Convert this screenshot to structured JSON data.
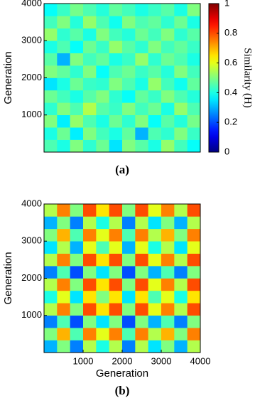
{
  "chart_data": [
    {
      "type": "heatmap",
      "title": "(a)",
      "y_label": "Generation",
      "colormap": "jet",
      "xlim": [
        0,
        4000
      ],
      "ylim": [
        0,
        4000
      ],
      "yticks": [
        1000,
        2000,
        3000,
        4000
      ],
      "clim": [
        0,
        1
      ],
      "colorbar_ticks": [
        0,
        0.2,
        0.4,
        0.6,
        0.8,
        1
      ],
      "colorbar_label": "Similarity (H)",
      "values": [
        [
          0.45,
          0.4,
          0.5,
          0.42,
          0.48,
          0.35,
          0.5,
          0.46,
          0.4,
          0.52,
          0.44,
          0.38
        ],
        [
          0.4,
          0.48,
          0.36,
          0.5,
          0.44,
          0.4,
          0.47,
          0.3,
          0.45,
          0.42,
          0.5,
          0.43
        ],
        [
          0.5,
          0.36,
          0.52,
          0.45,
          0.4,
          0.48,
          0.42,
          0.5,
          0.38,
          0.46,
          0.41,
          0.49
        ],
        [
          0.42,
          0.5,
          0.45,
          0.55,
          0.46,
          0.43,
          0.5,
          0.44,
          0.48,
          0.4,
          0.52,
          0.45
        ],
        [
          0.48,
          0.44,
          0.4,
          0.46,
          0.5,
          0.42,
          0.38,
          0.47,
          0.43,
          0.5,
          0.45,
          0.41
        ],
        [
          0.35,
          0.4,
          0.48,
          0.43,
          0.42,
          0.5,
          0.45,
          0.4,
          0.52,
          0.44,
          0.39,
          0.47
        ],
        [
          0.5,
          0.47,
          0.42,
          0.5,
          0.38,
          0.45,
          0.48,
          0.43,
          0.46,
          0.41,
          0.5,
          0.44
        ],
        [
          0.46,
          0.3,
          0.5,
          0.44,
          0.47,
          0.4,
          0.43,
          0.52,
          0.42,
          0.48,
          0.45,
          0.4
        ],
        [
          0.4,
          0.45,
          0.38,
          0.48,
          0.43,
          0.52,
          0.46,
          0.42,
          0.5,
          0.44,
          0.47,
          0.43
        ],
        [
          0.52,
          0.42,
          0.46,
          0.4,
          0.5,
          0.44,
          0.41,
          0.48,
          0.44,
          0.5,
          0.42,
          0.46
        ],
        [
          0.44,
          0.5,
          0.41,
          0.52,
          0.45,
          0.39,
          0.5,
          0.45,
          0.47,
          0.42,
          0.48,
          0.4
        ],
        [
          0.38,
          0.43,
          0.49,
          0.45,
          0.41,
          0.47,
          0.44,
          0.4,
          0.43,
          0.46,
          0.4,
          0.5
        ]
      ]
    },
    {
      "type": "heatmap",
      "title": "(b)",
      "y_label": "Generation",
      "x_label": "Generation",
      "colormap": "jet",
      "xlim": [
        0,
        4000
      ],
      "ylim": [
        0,
        4000
      ],
      "xticks": [
        1000,
        2000,
        3000,
        4000
      ],
      "yticks": [
        1000,
        2000,
        3000,
        4000
      ],
      "clim": [
        0,
        1
      ],
      "values": [
        [
          0.3,
          0.5,
          0.25,
          0.55,
          0.4,
          0.55,
          0.25,
          0.55,
          0.35,
          0.5,
          0.3,
          0.55
        ],
        [
          0.5,
          0.7,
          0.45,
          0.75,
          0.6,
          0.75,
          0.45,
          0.75,
          0.55,
          0.7,
          0.5,
          0.75
        ],
        [
          0.25,
          0.45,
          0.2,
          0.5,
          0.35,
          0.5,
          0.2,
          0.5,
          0.3,
          0.45,
          0.25,
          0.5
        ],
        [
          0.55,
          0.75,
          0.5,
          0.8,
          0.65,
          0.8,
          0.5,
          0.8,
          0.6,
          0.75,
          0.55,
          0.8
        ],
        [
          0.4,
          0.6,
          0.35,
          0.65,
          0.5,
          0.65,
          0.35,
          0.65,
          0.45,
          0.6,
          0.4,
          0.65
        ],
        [
          0.55,
          0.75,
          0.5,
          0.8,
          0.65,
          0.8,
          0.5,
          0.8,
          0.6,
          0.75,
          0.55,
          0.8
        ],
        [
          0.25,
          0.45,
          0.2,
          0.5,
          0.35,
          0.5,
          0.2,
          0.5,
          0.3,
          0.45,
          0.25,
          0.5
        ],
        [
          0.55,
          0.75,
          0.5,
          0.8,
          0.65,
          0.8,
          0.5,
          0.8,
          0.6,
          0.75,
          0.55,
          0.8
        ],
        [
          0.35,
          0.55,
          0.3,
          0.6,
          0.45,
          0.6,
          0.3,
          0.6,
          0.4,
          0.55,
          0.35,
          0.6
        ],
        [
          0.5,
          0.7,
          0.45,
          0.75,
          0.6,
          0.75,
          0.45,
          0.75,
          0.55,
          0.7,
          0.5,
          0.75
        ],
        [
          0.3,
          0.5,
          0.25,
          0.55,
          0.4,
          0.55,
          0.25,
          0.55,
          0.35,
          0.5,
          0.3,
          0.55
        ],
        [
          0.55,
          0.75,
          0.5,
          0.8,
          0.65,
          0.8,
          0.5,
          0.8,
          0.6,
          0.75,
          0.55,
          0.8
        ]
      ]
    }
  ]
}
